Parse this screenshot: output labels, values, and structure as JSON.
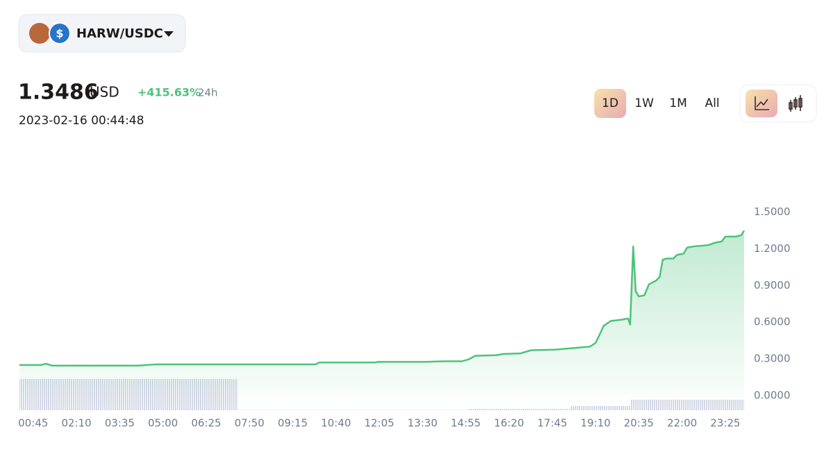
{
  "header": {
    "pair": "HARW/USDC",
    "price": "1.3486",
    "currency": "USD",
    "change": "+415.63%",
    "period": "24h",
    "timestamp": "2023-02-16 00:44:48"
  },
  "ranges": [
    "1D",
    "1W",
    "1M",
    "All"
  ],
  "chart_data": {
    "type": "line",
    "series": [
      {
        "color": "#4cc27a",
        "x": [
          18,
          61,
          70,
          82,
          252,
          286,
          600,
          607,
          716,
          723,
          812,
          853,
          887,
          900,
          914,
          955,
          969,
          1003,
          1023,
          1071,
          1139,
          1150,
          1156,
          1166,
          1180,
          1201,
          1214,
          1218,
          1224,
          1229,
          1235,
          1246,
          1255,
          1269,
          1276,
          1282,
          1289,
          1303,
          1310,
          1323,
          1330,
          1344,
          1371,
          1385,
          1398,
          1405,
          1425,
          1436,
          1442
        ],
        "values": [
          0.25,
          0.25,
          0.26,
          0.245,
          0.245,
          0.255,
          0.255,
          0.27,
          0.27,
          0.275,
          0.275,
          0.28,
          0.28,
          0.295,
          0.325,
          0.33,
          0.34,
          0.345,
          0.37,
          0.375,
          0.4,
          0.43,
          0.48,
          0.57,
          0.61,
          0.62,
          0.63,
          0.58,
          1.22,
          0.85,
          0.81,
          0.82,
          0.91,
          0.94,
          0.97,
          1.11,
          1.12,
          1.12,
          1.15,
          1.16,
          1.21,
          1.22,
          1.23,
          1.25,
          1.26,
          1.3,
          1.3,
          1.31,
          1.3486
        ]
      }
    ],
    "volume": {
      "bins": [
        18,
        447,
        900,
        1100,
        1218,
        1442
      ],
      "values": [
        45,
        0.5,
        2,
        6,
        15
      ],
      "ylim": [
        0,
        100
      ],
      "color": "#c9cde0"
    },
    "xlim": [
      18,
      1442
    ],
    "xticks": [
      {
        "value": 45,
        "label": "00:45"
      },
      {
        "value": 130,
        "label": "02:10"
      },
      {
        "value": 215,
        "label": "03:35"
      },
      {
        "value": 300,
        "label": "05:00"
      },
      {
        "value": 385,
        "label": "06:25"
      },
      {
        "value": 470,
        "label": "07:50"
      },
      {
        "value": 555,
        "label": "09:15"
      },
      {
        "value": 640,
        "label": "10:40"
      },
      {
        "value": 725,
        "label": "12:05"
      },
      {
        "value": 810,
        "label": "13:30"
      },
      {
        "value": 895,
        "label": "14:55"
      },
      {
        "value": 980,
        "label": "16:20"
      },
      {
        "value": 1065,
        "label": "17:45"
      },
      {
        "value": 1150,
        "label": "19:10"
      },
      {
        "value": 1235,
        "label": "20:35"
      },
      {
        "value": 1320,
        "label": "22:00"
      },
      {
        "value": 1405,
        "label": "23:25"
      }
    ],
    "ylim": [
      -0.12,
      1.6
    ],
    "yticks": [
      {
        "value": 0,
        "label": "0.0000"
      },
      {
        "value": 0.3,
        "label": "0.3000"
      },
      {
        "value": 0.6,
        "label": "0.6000"
      },
      {
        "value": 0.9,
        "label": "0.9000"
      },
      {
        "value": 1.2,
        "label": "1.2000"
      },
      {
        "value": 1.5,
        "label": "1.5000"
      }
    ]
  }
}
